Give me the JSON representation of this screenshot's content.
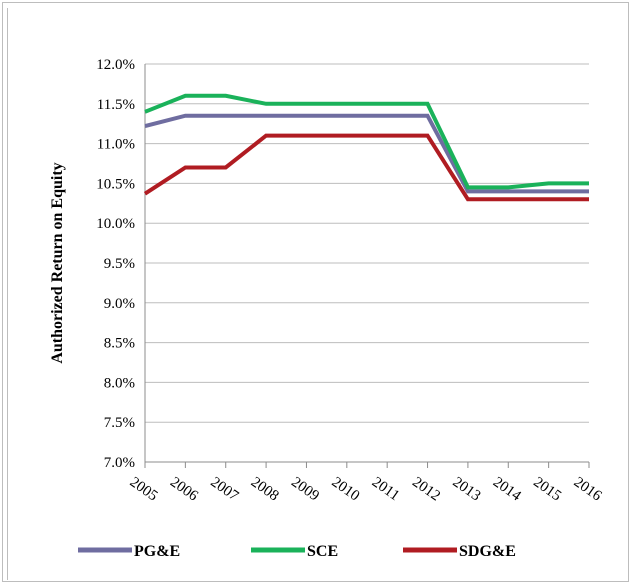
{
  "chart_data": {
    "type": "line",
    "ylabel": "Authorized Return on Equity",
    "xlabel": "",
    "categories": [
      "2005",
      "2006",
      "2007",
      "2008",
      "2009",
      "2010",
      "2011",
      "2012",
      "2013",
      "2014",
      "2015",
      "2016"
    ],
    "yticks": [
      "7.0%",
      "7.5%",
      "8.0%",
      "8.5%",
      "9.0%",
      "9.5%",
      "10.0%",
      "10.5%",
      "11.0%",
      "11.5%",
      "12.0%"
    ],
    "ylim": [
      7.0,
      12.0
    ],
    "grid": true,
    "legend_position": "bottom",
    "series": [
      {
        "name": "PG&E",
        "color": "#6f6da0",
        "values": [
          11.22,
          11.35,
          11.35,
          11.35,
          11.35,
          11.35,
          11.35,
          11.35,
          10.4,
          10.4,
          10.4,
          10.4
        ]
      },
      {
        "name": "SCE",
        "color": "#1ab25a",
        "values": [
          11.4,
          11.6,
          11.6,
          11.5,
          11.5,
          11.5,
          11.5,
          11.5,
          10.45,
          10.45,
          10.5,
          10.5
        ]
      },
      {
        "name": "SDG&E",
        "color": "#b01c22",
        "values": [
          10.37,
          10.7,
          10.7,
          11.1,
          11.1,
          11.1,
          11.1,
          11.1,
          10.3,
          10.3,
          10.3,
          10.3
        ]
      }
    ]
  }
}
